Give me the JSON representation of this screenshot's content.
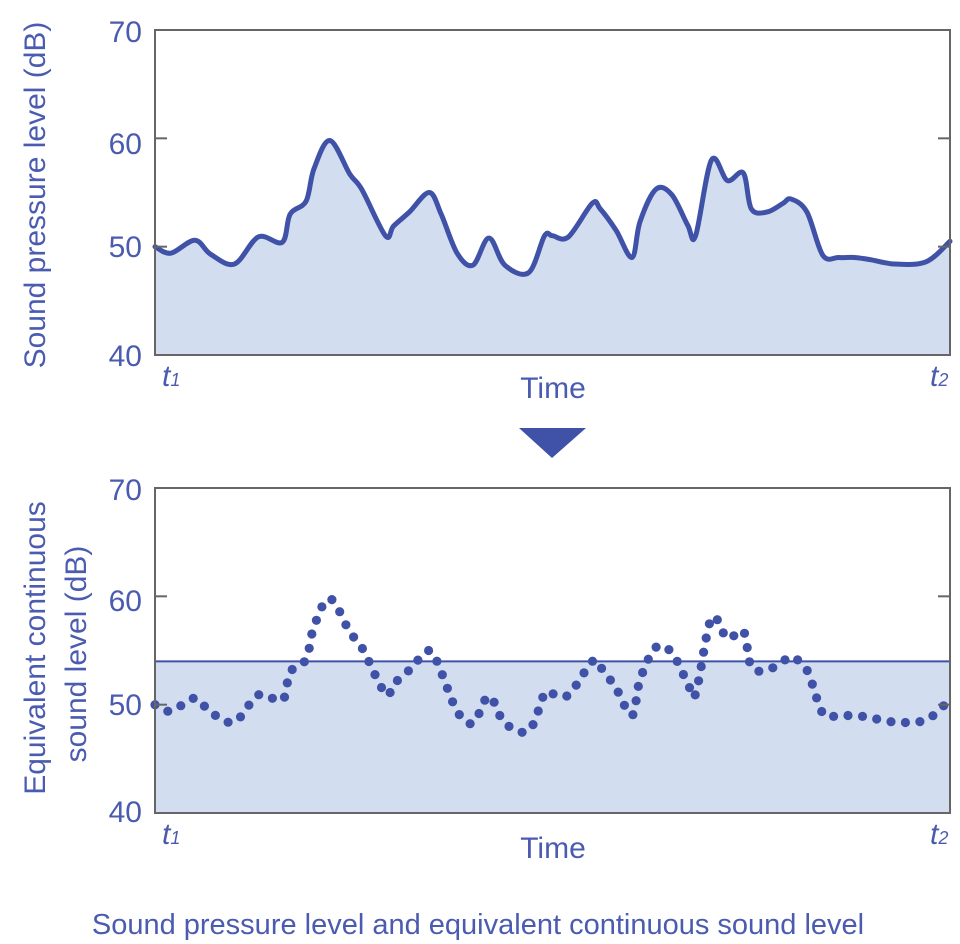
{
  "caption": "Sound pressure level and equivalent continuous sound level",
  "colors": {
    "accent": "#4a5bb0",
    "line": "#3f52a8",
    "fill": "#d3ddf0",
    "frame": "#666666",
    "dots": "#3f52a8"
  },
  "chart_data": [
    {
      "type": "area",
      "title": "",
      "ylabel": "Sound pressure level (dB)",
      "xlabel": "Time",
      "x_start_label": "t",
      "x_start_sub": "1",
      "x_end_label": "t",
      "x_end_sub": "2",
      "ylim": [
        40,
        70
      ],
      "yticks": [
        40,
        50,
        60,
        70
      ],
      "series": [
        {
          "name": "Sound pressure level",
          "x": [
            0,
            0.02,
            0.05,
            0.07,
            0.1,
            0.13,
            0.16,
            0.17,
            0.19,
            0.2,
            0.22,
            0.245,
            0.26,
            0.29,
            0.3,
            0.32,
            0.345,
            0.36,
            0.38,
            0.4,
            0.42,
            0.44,
            0.47,
            0.49,
            0.5,
            0.52,
            0.55,
            0.56,
            0.58,
            0.6,
            0.61,
            0.63,
            0.65,
            0.67,
            0.68,
            0.7,
            0.72,
            0.74,
            0.75,
            0.77,
            0.79,
            0.8,
            0.82,
            0.84,
            0.86,
            0.88,
            0.9,
            0.93,
            0.97,
            1.0
          ],
          "values": [
            50.0,
            49.4,
            50.6,
            49.3,
            48.4,
            50.9,
            50.4,
            53.0,
            54.2,
            57.2,
            59.8,
            56.7,
            55.3,
            51.0,
            51.9,
            53.2,
            55.0,
            53.0,
            49.4,
            48.3,
            50.8,
            48.3,
            47.6,
            51.0,
            51.0,
            50.9,
            54.0,
            53.5,
            51.5,
            49.0,
            52.3,
            55.3,
            54.8,
            52.0,
            51.0,
            58.0,
            56.1,
            56.8,
            53.5,
            53.2,
            54.0,
            54.4,
            53.2,
            49.2,
            49.0,
            49.0,
            48.8,
            48.4,
            48.6,
            50.5
          ]
        }
      ]
    },
    {
      "type": "scatter",
      "title": "",
      "ylabel_line1": "Equivalent continuous",
      "ylabel_line2": "sound level (dB)",
      "xlabel": "Time",
      "x_start_label": "t",
      "x_start_sub": "1",
      "x_end_label": "t",
      "x_end_sub": "2",
      "ylim": [
        40,
        70
      ],
      "yticks": [
        40,
        50,
        60,
        70
      ],
      "series": [
        {
          "name": "Sound pressure level (dotted)",
          "x": [
            0,
            0.02,
            0.05,
            0.07,
            0.1,
            0.13,
            0.16,
            0.17,
            0.19,
            0.2,
            0.22,
            0.245,
            0.26,
            0.29,
            0.3,
            0.32,
            0.345,
            0.36,
            0.38,
            0.4,
            0.42,
            0.44,
            0.47,
            0.49,
            0.5,
            0.52,
            0.55,
            0.56,
            0.58,
            0.6,
            0.61,
            0.63,
            0.65,
            0.67,
            0.68,
            0.7,
            0.72,
            0.74,
            0.75,
            0.77,
            0.79,
            0.8,
            0.82,
            0.84,
            0.86,
            0.88,
            0.9,
            0.93,
            0.97,
            1.0
          ],
          "values": [
            50.0,
            49.4,
            50.6,
            49.3,
            48.4,
            50.9,
            50.4,
            53.0,
            54.2,
            57.2,
            59.8,
            56.7,
            55.3,
            51.0,
            51.9,
            53.2,
            55.0,
            53.0,
            49.4,
            48.3,
            50.8,
            48.3,
            47.6,
            51.0,
            51.0,
            50.9,
            54.0,
            53.5,
            51.5,
            49.0,
            52.3,
            55.3,
            54.8,
            52.0,
            51.0,
            58.0,
            56.1,
            56.8,
            53.5,
            53.2,
            54.0,
            54.4,
            53.2,
            49.2,
            49.0,
            49.0,
            48.8,
            48.4,
            48.6,
            50.5
          ]
        },
        {
          "name": "Equivalent continuous sound level",
          "level": 54
        }
      ]
    }
  ]
}
